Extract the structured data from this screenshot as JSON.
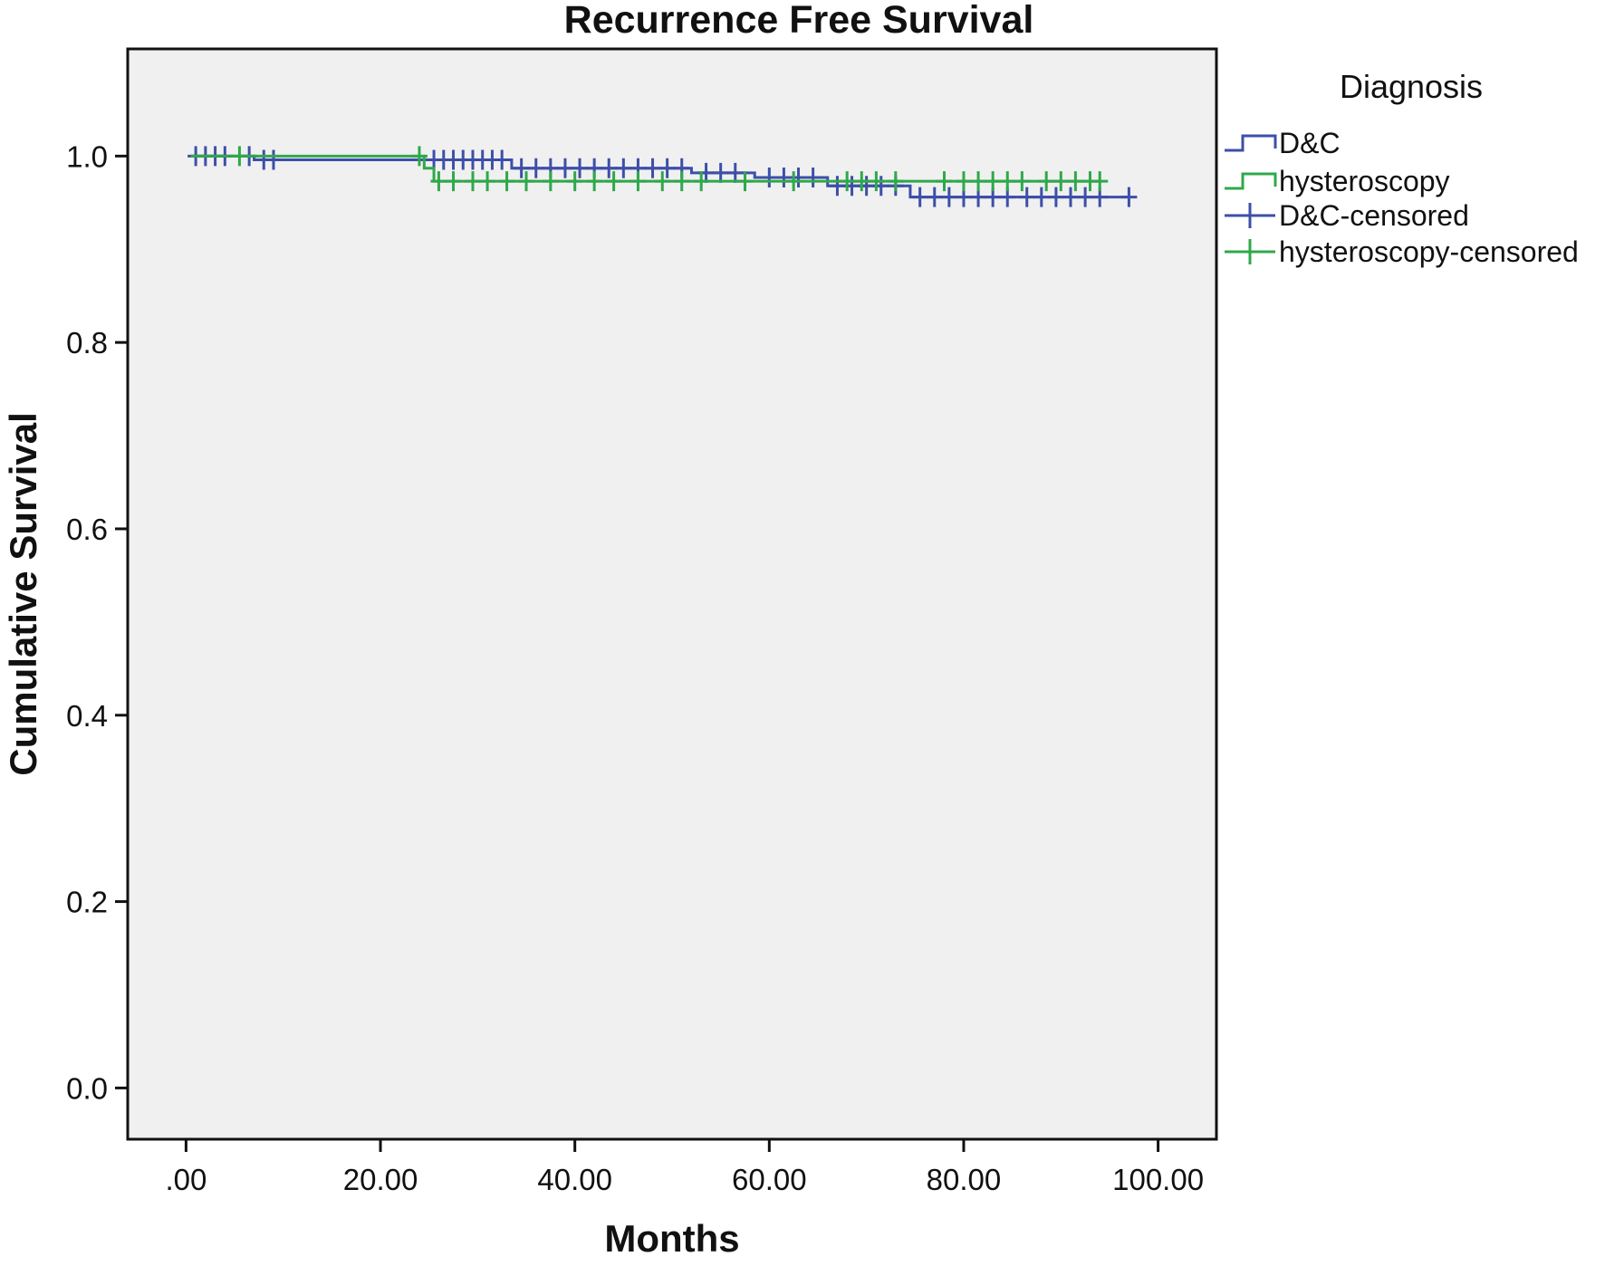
{
  "chart_data": {
    "type": "line",
    "subtype": "kaplan-meier step plot",
    "title": "Recurrence Free Survival",
    "xlabel": "Months",
    "ylabel": "Cumulative Survival",
    "xlim": [
      -6,
      106
    ],
    "ylim": [
      -0.055,
      1.115
    ],
    "x_ticks": [
      0,
      20,
      40,
      60,
      80,
      100
    ],
    "x_tick_labels": [
      ".00",
      "20.00",
      "40.00",
      "60.00",
      "80.00",
      "100.00"
    ],
    "y_ticks": [
      0.0,
      0.2,
      0.4,
      0.6,
      0.8,
      1.0
    ],
    "y_tick_labels": [
      "0.0",
      "0.2",
      "0.4",
      "0.6",
      "0.8",
      "1.0"
    ],
    "grid": false,
    "plot_background": "#f0f0f0",
    "legend": {
      "title": "Diagnosis",
      "position": "right",
      "entries": [
        {
          "label": "D&C",
          "kind": "step",
          "color": "#3d4fa8"
        },
        {
          "label": "hysteroscopy",
          "kind": "step",
          "color": "#2fa84a"
        },
        {
          "label": "D&C-censored",
          "kind": "censor",
          "color": "#3d4fa8"
        },
        {
          "label": "hysteroscopy-censored",
          "kind": "censor",
          "color": "#2fa84a"
        }
      ]
    },
    "series": [
      {
        "name": "D&C",
        "color": "#3d4fa8",
        "steps": [
          {
            "x": 0.5,
            "y": 1.0
          },
          {
            "x": 7.0,
            "y": 0.996
          },
          {
            "x": 25.0,
            "y": 0.996
          },
          {
            "x": 33.5,
            "y": 0.987
          },
          {
            "x": 52.0,
            "y": 0.982
          },
          {
            "x": 58.5,
            "y": 0.977
          },
          {
            "x": 66.0,
            "y": 0.968
          },
          {
            "x": 74.5,
            "y": 0.956
          },
          {
            "x": 97.0,
            "y": 0.956
          }
        ],
        "censored": [
          {
            "x": 1.0,
            "y": 1.0
          },
          {
            "x": 2.0,
            "y": 1.0
          },
          {
            "x": 3.0,
            "y": 1.0
          },
          {
            "x": 4.0,
            "y": 1.0
          },
          {
            "x": 6.5,
            "y": 1.0
          },
          {
            "x": 8.0,
            "y": 0.996
          },
          {
            "x": 9.0,
            "y": 0.996
          },
          {
            "x": 25.5,
            "y": 0.996
          },
          {
            "x": 26.5,
            "y": 0.996
          },
          {
            "x": 27.5,
            "y": 0.996
          },
          {
            "x": 28.5,
            "y": 0.996
          },
          {
            "x": 29.5,
            "y": 0.996
          },
          {
            "x": 30.5,
            "y": 0.996
          },
          {
            "x": 31.5,
            "y": 0.996
          },
          {
            "x": 32.5,
            "y": 0.996
          },
          {
            "x": 34.5,
            "y": 0.987
          },
          {
            "x": 36.0,
            "y": 0.987
          },
          {
            "x": 37.5,
            "y": 0.987
          },
          {
            "x": 39.0,
            "y": 0.987
          },
          {
            "x": 40.5,
            "y": 0.987
          },
          {
            "x": 42.0,
            "y": 0.987
          },
          {
            "x": 43.5,
            "y": 0.987
          },
          {
            "x": 45.0,
            "y": 0.987
          },
          {
            "x": 46.5,
            "y": 0.987
          },
          {
            "x": 48.0,
            "y": 0.987
          },
          {
            "x": 49.5,
            "y": 0.987
          },
          {
            "x": 51.0,
            "y": 0.987
          },
          {
            "x": 53.5,
            "y": 0.982
          },
          {
            "x": 55.0,
            "y": 0.982
          },
          {
            "x": 56.5,
            "y": 0.982
          },
          {
            "x": 60.0,
            "y": 0.977
          },
          {
            "x": 61.5,
            "y": 0.977
          },
          {
            "x": 63.0,
            "y": 0.977
          },
          {
            "x": 64.5,
            "y": 0.977
          },
          {
            "x": 67.0,
            "y": 0.968
          },
          {
            "x": 68.5,
            "y": 0.968
          },
          {
            "x": 70.0,
            "y": 0.968
          },
          {
            "x": 71.5,
            "y": 0.968
          },
          {
            "x": 73.0,
            "y": 0.968
          },
          {
            "x": 75.5,
            "y": 0.956
          },
          {
            "x": 77.0,
            "y": 0.956
          },
          {
            "x": 78.5,
            "y": 0.956
          },
          {
            "x": 80.0,
            "y": 0.956
          },
          {
            "x": 81.5,
            "y": 0.956
          },
          {
            "x": 83.0,
            "y": 0.956
          },
          {
            "x": 84.5,
            "y": 0.956
          },
          {
            "x": 86.5,
            "y": 0.956
          },
          {
            "x": 88.0,
            "y": 0.956
          },
          {
            "x": 89.5,
            "y": 0.956
          },
          {
            "x": 91.0,
            "y": 0.956
          },
          {
            "x": 92.5,
            "y": 0.956
          },
          {
            "x": 94.0,
            "y": 0.956
          },
          {
            "x": 97.0,
            "y": 0.956
          }
        ]
      },
      {
        "name": "hysteroscopy",
        "color": "#2fa84a",
        "steps": [
          {
            "x": 0.5,
            "y": 1.0
          },
          {
            "x": 24.5,
            "y": 0.987
          },
          {
            "x": 25.5,
            "y": 0.973
          },
          {
            "x": 94.0,
            "y": 0.973
          }
        ],
        "censored": [
          {
            "x": 5.5,
            "y": 1.0
          },
          {
            "x": 24.0,
            "y": 1.0
          },
          {
            "x": 26.0,
            "y": 0.973
          },
          {
            "x": 27.5,
            "y": 0.973
          },
          {
            "x": 29.5,
            "y": 0.973
          },
          {
            "x": 31.0,
            "y": 0.973
          },
          {
            "x": 33.0,
            "y": 0.973
          },
          {
            "x": 35.0,
            "y": 0.973
          },
          {
            "x": 37.5,
            "y": 0.973
          },
          {
            "x": 40.0,
            "y": 0.973
          },
          {
            "x": 42.0,
            "y": 0.973
          },
          {
            "x": 44.0,
            "y": 0.973
          },
          {
            "x": 46.5,
            "y": 0.973
          },
          {
            "x": 49.0,
            "y": 0.973
          },
          {
            "x": 51.0,
            "y": 0.973
          },
          {
            "x": 53.0,
            "y": 0.973
          },
          {
            "x": 57.5,
            "y": 0.973
          },
          {
            "x": 62.5,
            "y": 0.973
          },
          {
            "x": 68.0,
            "y": 0.973
          },
          {
            "x": 69.5,
            "y": 0.973
          },
          {
            "x": 71.0,
            "y": 0.973
          },
          {
            "x": 73.0,
            "y": 0.973
          },
          {
            "x": 78.0,
            "y": 0.973
          },
          {
            "x": 80.0,
            "y": 0.973
          },
          {
            "x": 81.5,
            "y": 0.973
          },
          {
            "x": 83.0,
            "y": 0.973
          },
          {
            "x": 84.5,
            "y": 0.973
          },
          {
            "x": 86.0,
            "y": 0.973
          },
          {
            "x": 88.5,
            "y": 0.973
          },
          {
            "x": 90.0,
            "y": 0.973
          },
          {
            "x": 91.5,
            "y": 0.973
          },
          {
            "x": 93.0,
            "y": 0.973
          },
          {
            "x": 94.0,
            "y": 0.973
          }
        ]
      }
    ]
  }
}
